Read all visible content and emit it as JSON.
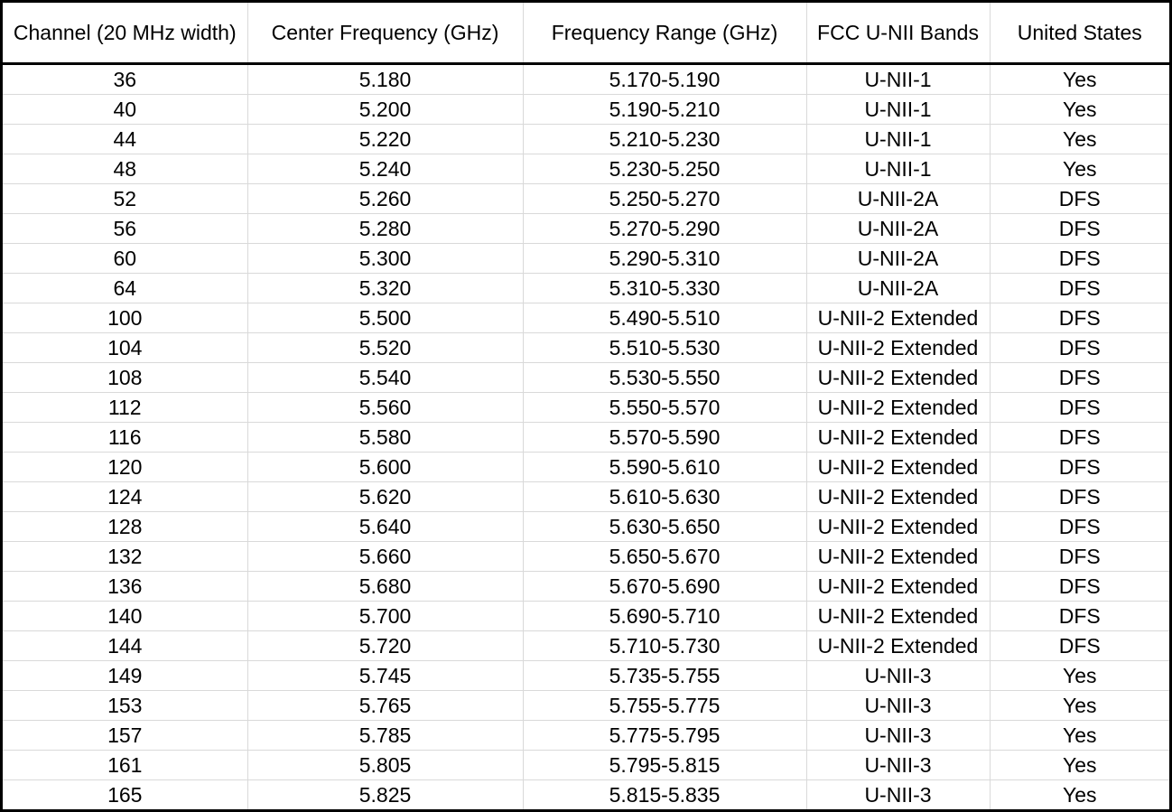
{
  "table": {
    "headers": [
      "Channel (20 MHz width)",
      "Center Frequency (GHz)",
      "Frequency Range (GHz)",
      "FCC U-NII Bands",
      "United States"
    ],
    "rows": [
      [
        "36",
        "5.180",
        "5.170-5.190",
        "U-NII-1",
        "Yes"
      ],
      [
        "40",
        "5.200",
        "5.190-5.210",
        "U-NII-1",
        "Yes"
      ],
      [
        "44",
        "5.220",
        "5.210-5.230",
        "U-NII-1",
        "Yes"
      ],
      [
        "48",
        "5.240",
        "5.230-5.250",
        "U-NII-1",
        "Yes"
      ],
      [
        "52",
        "5.260",
        "5.250-5.270",
        "U-NII-2A",
        "DFS"
      ],
      [
        "56",
        "5.280",
        "5.270-5.290",
        "U-NII-2A",
        "DFS"
      ],
      [
        "60",
        "5.300",
        "5.290-5.310",
        "U-NII-2A",
        "DFS"
      ],
      [
        "64",
        "5.320",
        "5.310-5.330",
        "U-NII-2A",
        "DFS"
      ],
      [
        "100",
        "5.500",
        "5.490-5.510",
        "U-NII-2 Extended",
        "DFS"
      ],
      [
        "104",
        "5.520",
        "5.510-5.530",
        "U-NII-2 Extended",
        "DFS"
      ],
      [
        "108",
        "5.540",
        "5.530-5.550",
        "U-NII-2 Extended",
        "DFS"
      ],
      [
        "112",
        "5.560",
        "5.550-5.570",
        "U-NII-2 Extended",
        "DFS"
      ],
      [
        "116",
        "5.580",
        "5.570-5.590",
        "U-NII-2 Extended",
        "DFS"
      ],
      [
        "120",
        "5.600",
        "5.590-5.610",
        "U-NII-2 Extended",
        "DFS"
      ],
      [
        "124",
        "5.620",
        "5.610-5.630",
        "U-NII-2 Extended",
        "DFS"
      ],
      [
        "128",
        "5.640",
        "5.630-5.650",
        "U-NII-2 Extended",
        "DFS"
      ],
      [
        "132",
        "5.660",
        "5.650-5.670",
        "U-NII-2 Extended",
        "DFS"
      ],
      [
        "136",
        "5.680",
        "5.670-5.690",
        "U-NII-2 Extended",
        "DFS"
      ],
      [
        "140",
        "5.700",
        "5.690-5.710",
        "U-NII-2 Extended",
        "DFS"
      ],
      [
        "144",
        "5.720",
        "5.710-5.730",
        "U-NII-2 Extended",
        "DFS"
      ],
      [
        "149",
        "5.745",
        "5.735-5.755",
        "U-NII-3",
        "Yes"
      ],
      [
        "153",
        "5.765",
        "5.755-5.775",
        "U-NII-3",
        "Yes"
      ],
      [
        "157",
        "5.785",
        "5.775-5.795",
        "U-NII-3",
        "Yes"
      ],
      [
        "161",
        "5.805",
        "5.795-5.815",
        "U-NII-3",
        "Yes"
      ],
      [
        "165",
        "5.825",
        "5.815-5.835",
        "U-NII-3",
        "Yes"
      ]
    ]
  }
}
